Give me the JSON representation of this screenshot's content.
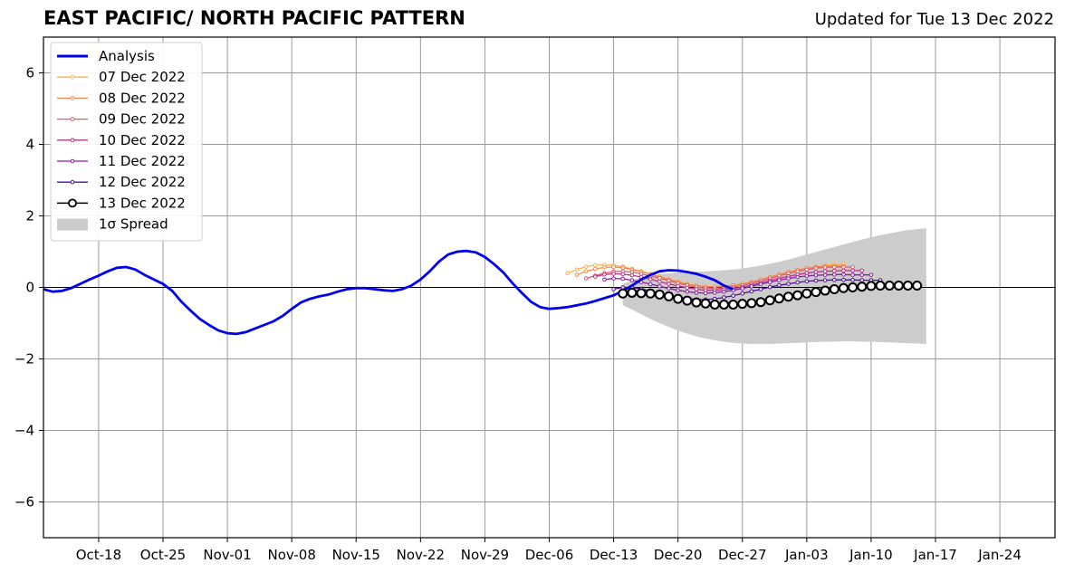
{
  "title": "EAST PACIFIC/ NORTH PACIFIC PATTERN",
  "subtitle": "Updated for Tue 13 Dec 2022",
  "chart_data": {
    "type": "line",
    "title": "EAST PACIFIC/ NORTH PACIFIC PATTERN",
    "subtitle": "Updated for Tue 13 Dec 2022",
    "x_range": [
      "2022-10-12",
      "2023-01-30"
    ],
    "ylim": [
      -7,
      7
    ],
    "y_ticks": [
      -6,
      -4,
      -2,
      0,
      2,
      4,
      6
    ],
    "y_tick_labels": [
      "−6",
      "−4",
      "−2",
      "0",
      "2",
      "4",
      "6"
    ],
    "x_ticks": [
      "2022-10-18",
      "2022-10-25",
      "2022-11-01",
      "2022-11-08",
      "2022-11-15",
      "2022-11-22",
      "2022-11-29",
      "2022-12-06",
      "2022-12-13",
      "2022-12-20",
      "2022-12-27",
      "2023-01-03",
      "2023-01-10",
      "2023-01-17",
      "2023-01-24"
    ],
    "x_tick_labels": [
      "Oct-18",
      "Oct-25",
      "Nov-01",
      "Nov-08",
      "Nov-15",
      "Nov-22",
      "Nov-29",
      "Dec-06",
      "Dec-13",
      "Dec-20",
      "Dec-27",
      "Jan-03",
      "Jan-10",
      "Jan-17",
      "Jan-24"
    ],
    "grid": true,
    "legend_position": "top-left",
    "legend": [
      "Analysis",
      "07 Dec 2022",
      "08 Dec 2022",
      "09 Dec 2022",
      "10 Dec 2022",
      "11 Dec 2022",
      "12 Dec 2022",
      "13 Dec 2022",
      "1σ Spread"
    ],
    "analysis": {
      "name": "Analysis",
      "color": "#0000ee",
      "start": "2022-10-12",
      "values": [
        -0.05,
        -0.12,
        -0.1,
        -0.02,
        0.1,
        0.22,
        0.33,
        0.45,
        0.55,
        0.57,
        0.5,
        0.35,
        0.22,
        0.1,
        -0.1,
        -0.4,
        -0.65,
        -0.88,
        -1.05,
        -1.2,
        -1.28,
        -1.3,
        -1.25,
        -1.15,
        -1.05,
        -0.95,
        -0.8,
        -0.6,
        -0.42,
        -0.32,
        -0.25,
        -0.2,
        -0.12,
        -0.05,
        -0.02,
        -0.02,
        -0.05,
        -0.08,
        -0.1,
        -0.05,
        0.05,
        0.22,
        0.45,
        0.72,
        0.92,
        1.0,
        1.02,
        0.98,
        0.85,
        0.65,
        0.42,
        0.12,
        -0.15,
        -0.4,
        -0.55,
        -0.6,
        -0.58,
        -0.55,
        -0.5,
        -0.45,
        -0.38,
        -0.3,
        -0.22,
        -0.1,
        0.05,
        0.22,
        0.35,
        0.45,
        0.48,
        0.47,
        0.43,
        0.38,
        0.3,
        0.2,
        0.05,
        -0.05
      ]
    },
    "forecasts": [
      {
        "name": "07 Dec 2022",
        "color": "#fdb242",
        "start": "2022-12-08",
        "values": [
          0.4,
          0.5,
          0.58,
          0.62,
          0.63,
          0.62,
          0.58,
          0.52,
          0.45,
          0.38,
          0.3,
          0.23,
          0.17,
          0.1,
          0.05,
          0.02,
          0.02,
          0.03,
          0.05,
          0.08,
          0.12,
          0.18,
          0.25,
          0.32,
          0.4,
          0.47,
          0.53,
          0.58,
          0.62,
          0.64,
          0.65
        ]
      },
      {
        "name": "08 Dec 2022",
        "color": "#f08a4b",
        "start": "2022-12-09",
        "values": [
          0.35,
          0.45,
          0.52,
          0.56,
          0.57,
          0.55,
          0.5,
          0.44,
          0.37,
          0.3,
          0.22,
          0.15,
          0.09,
          0.05,
          0.02,
          0.02,
          0.03,
          0.06,
          0.1,
          0.15,
          0.22,
          0.29,
          0.36,
          0.43,
          0.49,
          0.54,
          0.57,
          0.59,
          0.6,
          0.6
        ]
      },
      {
        "name": "09 Dec 2022",
        "color": "#e05c6a",
        "start": "2022-12-10",
        "values": [
          0.25,
          0.33,
          0.4,
          0.44,
          0.45,
          0.43,
          0.38,
          0.32,
          0.26,
          0.19,
          0.12,
          0.06,
          0.01,
          -0.02,
          -0.03,
          -0.02,
          0.01,
          0.06,
          0.12,
          0.18,
          0.25,
          0.32,
          0.39,
          0.45,
          0.5,
          0.54,
          0.56,
          0.57,
          0.57,
          0.57
        ]
      },
      {
        "name": "10 Dec 2022",
        "color": "#b8348a",
        "start": "2022-12-11",
        "values": [
          0.3,
          0.36,
          0.38,
          0.37,
          0.34,
          0.29,
          0.23,
          0.16,
          0.1,
          0.04,
          -0.01,
          -0.05,
          -0.08,
          -0.08,
          -0.06,
          -0.03,
          0.01,
          0.07,
          0.13,
          0.19,
          0.25,
          0.31,
          0.36,
          0.4,
          0.43,
          0.45,
          0.46,
          0.47,
          0.47,
          0.47
        ]
      },
      {
        "name": "11 Dec 2022",
        "color": "#8a1fa0",
        "start": "2022-12-12",
        "values": [
          0.22,
          0.25,
          0.24,
          0.2,
          0.15,
          0.09,
          0.03,
          -0.03,
          -0.08,
          -0.12,
          -0.15,
          -0.16,
          -0.15,
          -0.12,
          -0.08,
          -0.03,
          0.03,
          0.09,
          0.15,
          0.2,
          0.25,
          0.29,
          0.32,
          0.34,
          0.35,
          0.36,
          0.36,
          0.35,
          0.35,
          0.35
        ]
      },
      {
        "name": "12 Dec 2022",
        "color": "#4d0c9a",
        "start": "2022-12-13",
        "values": [
          -0.05,
          0.0,
          0.0,
          -0.04,
          -0.1,
          -0.16,
          -0.22,
          -0.27,
          -0.31,
          -0.34,
          -0.34,
          -0.32,
          -0.28,
          -0.23,
          -0.17,
          -0.11,
          -0.05,
          0.01,
          0.06,
          0.1,
          0.14,
          0.17,
          0.19,
          0.2,
          0.21,
          0.21,
          0.21,
          0.2,
          0.2,
          0.2
        ]
      },
      {
        "name": "13 Dec 2022",
        "color": "#000000",
        "start": "2022-12-14",
        "values": [
          -0.17,
          -0.15,
          -0.16,
          -0.17,
          -0.2,
          -0.25,
          -0.32,
          -0.37,
          -0.42,
          -0.45,
          -0.48,
          -0.48,
          -0.48,
          -0.46,
          -0.44,
          -0.41,
          -0.36,
          -0.31,
          -0.26,
          -0.22,
          -0.17,
          -0.13,
          -0.09,
          -0.05,
          -0.02,
          0.0,
          0.02,
          0.04,
          0.05,
          0.05,
          0.05,
          0.05,
          0.05
        ]
      }
    ],
    "spread": {
      "name": "1σ Spread",
      "color": "#cccccc",
      "start": "2022-12-14",
      "upper": [
        0.1,
        0.2,
        0.28,
        0.33,
        0.37,
        0.4,
        0.42,
        0.43,
        0.44,
        0.45,
        0.46,
        0.48,
        0.5,
        0.53,
        0.57,
        0.61,
        0.66,
        0.72,
        0.78,
        0.85,
        0.92,
        0.99,
        1.06,
        1.13,
        1.2,
        1.27,
        1.34,
        1.4,
        1.46,
        1.51,
        1.56,
        1.6,
        1.63,
        1.65
      ],
      "lower": [
        -0.5,
        -0.62,
        -0.75,
        -0.88,
        -1.0,
        -1.11,
        -1.21,
        -1.29,
        -1.37,
        -1.43,
        -1.48,
        -1.52,
        -1.55,
        -1.57,
        -1.58,
        -1.58,
        -1.58,
        -1.57,
        -1.56,
        -1.55,
        -1.54,
        -1.53,
        -1.52,
        -1.52,
        -1.51,
        -1.51,
        -1.52,
        -1.52,
        -1.53,
        -1.54,
        -1.55,
        -1.56,
        -1.57,
        -1.58
      ]
    }
  }
}
